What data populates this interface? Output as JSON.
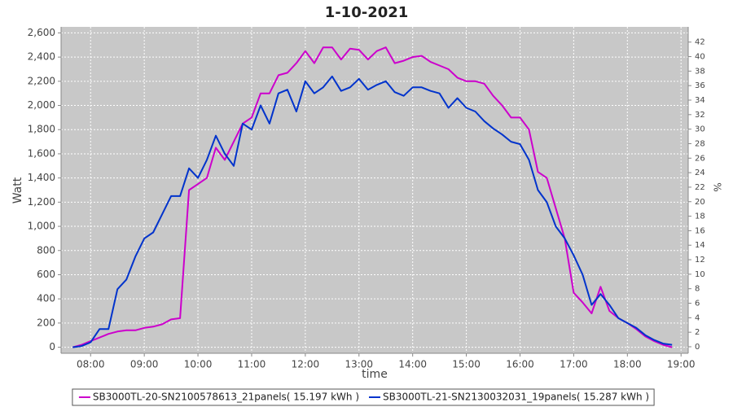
{
  "chart_data": {
    "type": "line",
    "title": "1-10-2021",
    "x_label": "time",
    "y_label": "Watt",
    "y2_label": "%",
    "xlim": [
      "07:27",
      "19:08"
    ],
    "xticks": [
      "08:00",
      "09:00",
      "10:00",
      "11:00",
      "12:00",
      "13:00",
      "14:00",
      "15:00",
      "16:00",
      "17:00",
      "18:00",
      "19:00"
    ],
    "ylim": [
      -50,
      2650
    ],
    "yticks": [
      0,
      200,
      400,
      600,
      800,
      {
        "value": 1000,
        "label": "1,000"
      },
      {
        "value": 1200,
        "label": "1,200"
      },
      {
        "value": 1400,
        "label": "1,400"
      },
      {
        "value": 1600,
        "label": "1,600"
      },
      {
        "value": 1800,
        "label": "1,800"
      },
      {
        "value": 2000,
        "label": "2,000"
      },
      {
        "value": 2200,
        "label": "2,200"
      },
      {
        "value": 2400,
        "label": "2,400"
      },
      {
        "value": 2600,
        "label": "2,600"
      }
    ],
    "y2lim": [
      -0.9,
      44.1
    ],
    "y2ticks": [
      0,
      2,
      4,
      6,
      8,
      10,
      12,
      14,
      16,
      18,
      20,
      22,
      24,
      26,
      28,
      30,
      32,
      34,
      36,
      38,
      40,
      42
    ],
    "grid": true,
    "x": [
      "07:40",
      "07:50",
      "08:00",
      "08:10",
      "08:20",
      "08:30",
      "08:40",
      "08:50",
      "09:00",
      "09:10",
      "09:20",
      "09:30",
      "09:40",
      "09:50",
      "10:00",
      "10:10",
      "10:20",
      "10:30",
      "10:40",
      "10:50",
      "11:00",
      "11:10",
      "11:20",
      "11:30",
      "11:40",
      "11:50",
      "12:00",
      "12:10",
      "12:20",
      "12:30",
      "12:40",
      "12:50",
      "13:00",
      "13:10",
      "13:20",
      "13:30",
      "13:40",
      "13:50",
      "14:00",
      "14:10",
      "14:20",
      "14:30",
      "14:40",
      "14:50",
      "15:00",
      "15:10",
      "15:20",
      "15:30",
      "15:40",
      "15:50",
      "16:00",
      "16:10",
      "16:20",
      "16:30",
      "16:40",
      "16:50",
      "17:00",
      "17:10",
      "17:20",
      "17:30",
      "17:40",
      "17:50",
      "18:00",
      "18:10",
      "18:20",
      "18:30",
      "18:40",
      "18:50"
    ],
    "series": [
      {
        "name": "SB3000TL-20-SN2100578613_21panels( 15.197 kWh )",
        "color": "#cc00cc",
        "values": [
          0,
          20,
          50,
          80,
          110,
          130,
          140,
          140,
          160,
          170,
          190,
          230,
          240,
          1300,
          1350,
          1400,
          1650,
          1550,
          1700,
          1850,
          1900,
          2100,
          2100,
          2250,
          2270,
          2350,
          2450,
          2350,
          2480,
          2480,
          2380,
          2470,
          2460,
          2380,
          2450,
          2480,
          2350,
          2370,
          2400,
          2410,
          2360,
          2330,
          2300,
          2230,
          2200,
          2200,
          2180,
          2080,
          2000,
          1900,
          1900,
          1800,
          1450,
          1400,
          1150,
          900,
          450,
          370,
          280,
          500,
          300,
          240,
          200,
          150,
          90,
          50,
          20,
          0
        ]
      },
      {
        "name": "SB3000TL-21-SN2130032031_19panels( 15.287 kWh )",
        "color": "#0033cc",
        "values": [
          0,
          10,
          40,
          150,
          150,
          480,
          560,
          750,
          900,
          950,
          1100,
          1250,
          1250,
          1480,
          1400,
          1550,
          1750,
          1600,
          1500,
          1850,
          1800,
          2000,
          1850,
          2100,
          2130,
          1950,
          2200,
          2100,
          2150,
          2240,
          2120,
          2150,
          2220,
          2130,
          2170,
          2200,
          2110,
          2080,
          2150,
          2150,
          2120,
          2100,
          1980,
          2060,
          1980,
          1950,
          1870,
          1810,
          1760,
          1700,
          1680,
          1550,
          1300,
          1200,
          1000,
          900,
          760,
          600,
          350,
          440,
          350,
          240,
          200,
          160,
          100,
          60,
          30,
          20
        ]
      }
    ]
  }
}
